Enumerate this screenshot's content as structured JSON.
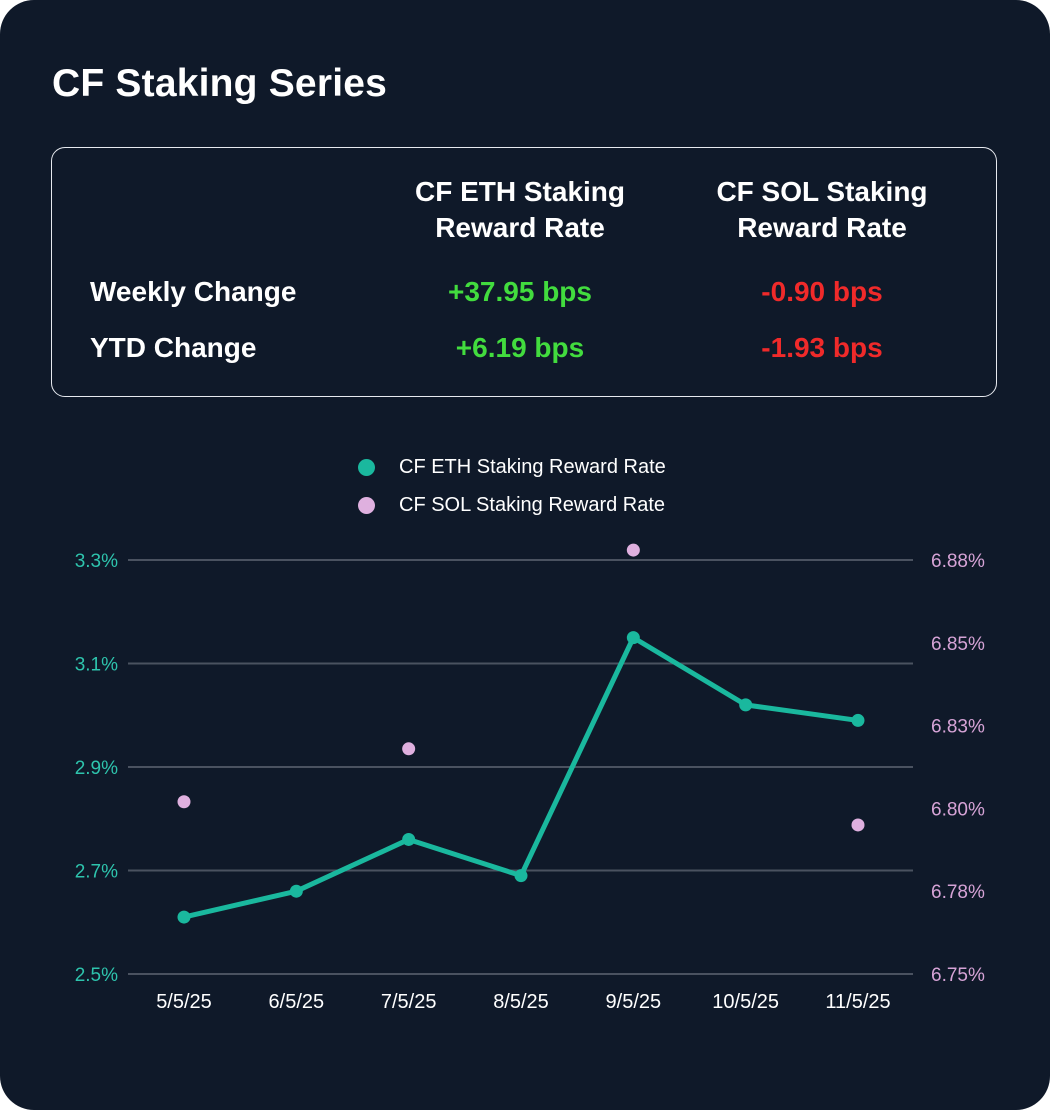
{
  "header": {
    "title": "CF Staking Series"
  },
  "summary": {
    "columns": [
      "CF ETH Staking\nReward Rate",
      "CF SOL Staking\nReward Rate"
    ],
    "rows": [
      {
        "label": "Weekly Change",
        "eth": "+37.95 bps",
        "sol": "-0.90 bps"
      },
      {
        "label": "YTD Change",
        "eth": "+6.19 bps",
        "sol": "-1.93 bps"
      }
    ]
  },
  "colors": {
    "eth": "#1ab89e",
    "sol": "#dfb0df",
    "positive": "#42dc3e",
    "negative": "#f02a2a",
    "grid": "#4a5260"
  },
  "chart_data": {
    "type": "line",
    "title": "",
    "categories": [
      "5/5/25",
      "6/5/25",
      "7/5/25",
      "8/5/25",
      "9/5/25",
      "10/5/25",
      "11/5/25"
    ],
    "series": [
      {
        "name": "CF ETH Staking Reward Rate",
        "axis": "left",
        "style": "line",
        "color": "#1ab89e",
        "values": [
          2.61,
          2.66,
          2.76,
          2.69,
          3.15,
          3.02,
          2.99
        ]
      },
      {
        "name": "CF SOL Staking Reward Rate",
        "axis": "right",
        "style": "scatter",
        "color": "#dfb0df",
        "values": [
          6.802,
          null,
          6.818,
          null,
          6.878,
          null,
          6.795
        ]
      }
    ],
    "left_axis": {
      "ylim": [
        2.5,
        3.3
      ],
      "ticks": [
        "3.3%",
        "3.1%",
        "2.9%",
        "2.7%",
        "2.5%"
      ]
    },
    "right_axis": {
      "ylim": [
        6.75,
        6.875
      ],
      "ticks": [
        "6.88%",
        "6.85%",
        "6.83%",
        "6.80%",
        "6.78%",
        "6.75%"
      ]
    },
    "grid": true,
    "legend": "top-center"
  }
}
